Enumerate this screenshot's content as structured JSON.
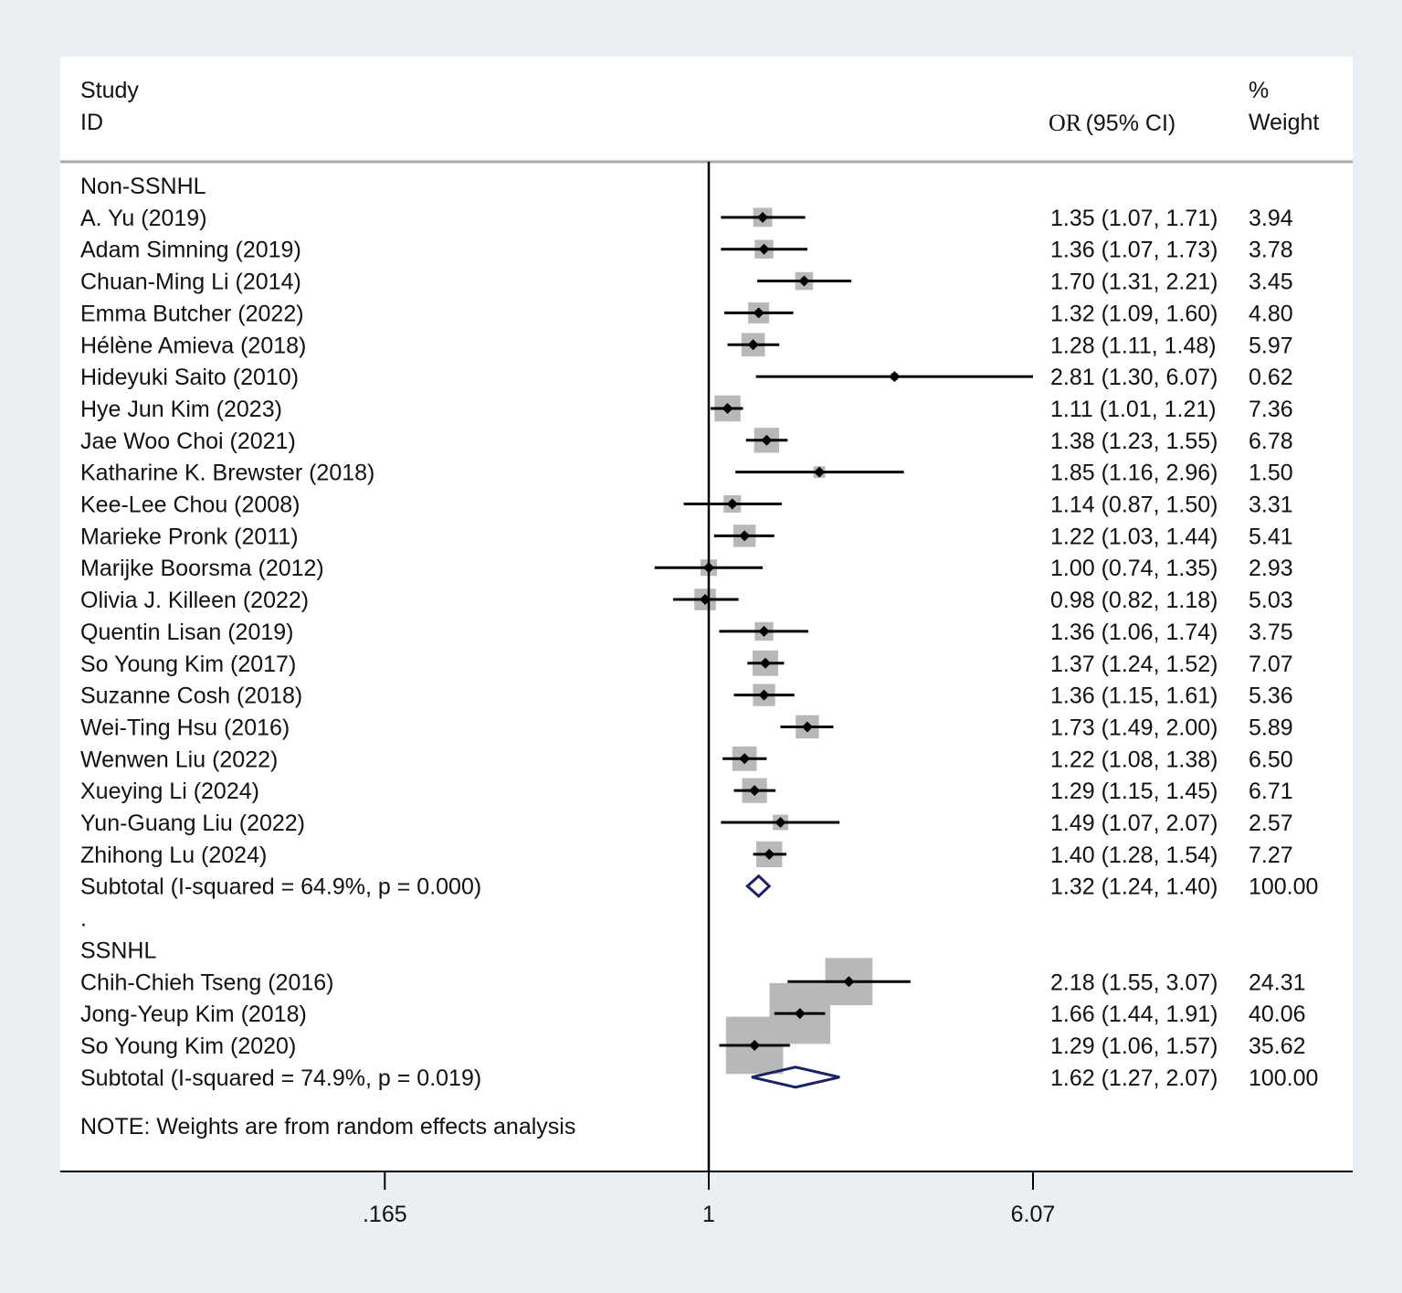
{
  "header": {
    "study": "Study",
    "id": "ID",
    "or_prefix": "OR",
    "ci_label": "(95% CI)",
    "pct": "%",
    "weight": "Weight"
  },
  "colors": {
    "box": "#b8b8b8",
    "diamond": "#1a2266",
    "line": "#000000",
    "panel": "#ffffff",
    "outer_bg": "#eaeff4"
  },
  "chart_data": {
    "type": "forest",
    "x_scale": "log",
    "null_line": 1,
    "xticks": [
      ".165",
      "1",
      "6.07"
    ],
    "xtick_values": [
      0.165,
      1,
      6.07
    ],
    "xlim": [
      0.165,
      6.07
    ],
    "rows": [
      {
        "kind": "group",
        "label": "Non-SSNHL"
      },
      {
        "kind": "study",
        "label": "A. Yu (2019)",
        "or": 1.35,
        "lo": 1.07,
        "hi": 1.71,
        "text": "1.35 (1.07, 1.71)",
        "weight": "3.94"
      },
      {
        "kind": "study",
        "label": "Adam Simning (2019)",
        "or": 1.36,
        "lo": 1.07,
        "hi": 1.73,
        "text": "1.36 (1.07, 1.73)",
        "weight": "3.78"
      },
      {
        "kind": "study",
        "label": "Chuan-Ming Li (2014)",
        "or": 1.7,
        "lo": 1.31,
        "hi": 2.21,
        "text": "1.70 (1.31, 2.21)",
        "weight": "3.45"
      },
      {
        "kind": "study",
        "label": "Emma Butcher (2022)",
        "or": 1.32,
        "lo": 1.09,
        "hi": 1.6,
        "text": "1.32 (1.09, 1.60)",
        "weight": "4.80"
      },
      {
        "kind": "study",
        "label": "Hélène Amieva (2018)",
        "or": 1.28,
        "lo": 1.11,
        "hi": 1.48,
        "text": "1.28 (1.11, 1.48)",
        "weight": "5.97"
      },
      {
        "kind": "study",
        "label": "Hideyuki Saito (2010)",
        "or": 2.81,
        "lo": 1.3,
        "hi": 6.07,
        "text": "2.81 (1.30, 6.07)",
        "weight": "0.62"
      },
      {
        "kind": "study",
        "label": "Hye Jun Kim (2023)",
        "or": 1.11,
        "lo": 1.01,
        "hi": 1.21,
        "text": "1.11 (1.01, 1.21)",
        "weight": "7.36"
      },
      {
        "kind": "study",
        "label": "Jae Woo Choi (2021)",
        "or": 1.38,
        "lo": 1.23,
        "hi": 1.55,
        "text": "1.38 (1.23, 1.55)",
        "weight": "6.78"
      },
      {
        "kind": "study",
        "label": "Katharine K. Brewster (2018)",
        "or": 1.85,
        "lo": 1.16,
        "hi": 2.96,
        "text": "1.85 (1.16, 2.96)",
        "weight": "1.50"
      },
      {
        "kind": "study",
        "label": "Kee-Lee Chou (2008)",
        "or": 1.14,
        "lo": 0.87,
        "hi": 1.5,
        "text": "1.14 (0.87, 1.50)",
        "weight": "3.31"
      },
      {
        "kind": "study",
        "label": "Marieke Pronk (2011)",
        "or": 1.22,
        "lo": 1.03,
        "hi": 1.44,
        "text": "1.22 (1.03, 1.44)",
        "weight": "5.41"
      },
      {
        "kind": "study",
        "label": "Marijke Boorsma (2012)",
        "or": 1.0,
        "lo": 0.74,
        "hi": 1.35,
        "text": "1.00 (0.74, 1.35)",
        "weight": "2.93"
      },
      {
        "kind": "study",
        "label": "Olivia J. Killeen (2022)",
        "or": 0.98,
        "lo": 0.82,
        "hi": 1.18,
        "text": "0.98 (0.82, 1.18)",
        "weight": "5.03"
      },
      {
        "kind": "study",
        "label": "Quentin Lisan (2019)",
        "or": 1.36,
        "lo": 1.06,
        "hi": 1.74,
        "text": "1.36 (1.06, 1.74)",
        "weight": "3.75"
      },
      {
        "kind": "study",
        "label": "So Young Kim (2017)",
        "or": 1.37,
        "lo": 1.24,
        "hi": 1.52,
        "text": "1.37 (1.24, 1.52)",
        "weight": "7.07"
      },
      {
        "kind": "study",
        "label": "Suzanne Cosh (2018)",
        "or": 1.36,
        "lo": 1.15,
        "hi": 1.61,
        "text": "1.36 (1.15, 1.61)",
        "weight": "5.36"
      },
      {
        "kind": "study",
        "label": "Wei-Ting Hsu (2016)",
        "or": 1.73,
        "lo": 1.49,
        "hi": 2.0,
        "text": "1.73 (1.49, 2.00)",
        "weight": "5.89"
      },
      {
        "kind": "study",
        "label": "Wenwen Liu (2022)",
        "or": 1.22,
        "lo": 1.08,
        "hi": 1.38,
        "text": "1.22 (1.08, 1.38)",
        "weight": "6.50"
      },
      {
        "kind": "study",
        "label": "Xueying Li (2024)",
        "or": 1.29,
        "lo": 1.15,
        "hi": 1.45,
        "text": "1.29 (1.15, 1.45)",
        "weight": "6.71"
      },
      {
        "kind": "study",
        "label": "Yun-Guang Liu (2022)",
        "or": 1.49,
        "lo": 1.07,
        "hi": 2.07,
        "text": "1.49 (1.07, 2.07)",
        "weight": "2.57"
      },
      {
        "kind": "study",
        "label": "Zhihong Lu (2024)",
        "or": 1.4,
        "lo": 1.28,
        "hi": 1.54,
        "text": "1.40 (1.28, 1.54)",
        "weight": "7.27"
      },
      {
        "kind": "subtotal",
        "label": "Subtotal  (I-squared = 64.9%, p = 0.000)",
        "or": 1.32,
        "lo": 1.24,
        "hi": 1.4,
        "text": "1.32 (1.24, 1.40)",
        "weight": "100.00"
      },
      {
        "kind": "spacer",
        "label": "."
      },
      {
        "kind": "group",
        "label": "SSNHL"
      },
      {
        "kind": "study",
        "label": "Chih-Chieh Tseng (2016)",
        "or": 2.18,
        "lo": 1.55,
        "hi": 3.07,
        "text": "2.18 (1.55, 3.07)",
        "weight": "24.31"
      },
      {
        "kind": "study",
        "label": "Jong-Yeup Kim (2018)",
        "or": 1.66,
        "lo": 1.44,
        "hi": 1.91,
        "text": "1.66 (1.44, 1.91)",
        "weight": "40.06"
      },
      {
        "kind": "study",
        "label": "So Young Kim (2020)",
        "or": 1.29,
        "lo": 1.06,
        "hi": 1.57,
        "text": "1.29 (1.06, 1.57)",
        "weight": "35.62"
      },
      {
        "kind": "subtotal",
        "label": "Subtotal  (I-squared = 74.9%, p = 0.019)",
        "or": 1.62,
        "lo": 1.27,
        "hi": 2.07,
        "text": "1.62 (1.27, 2.07)",
        "weight": "100.00"
      }
    ],
    "note": "NOTE: Weights are from random effects analysis"
  }
}
